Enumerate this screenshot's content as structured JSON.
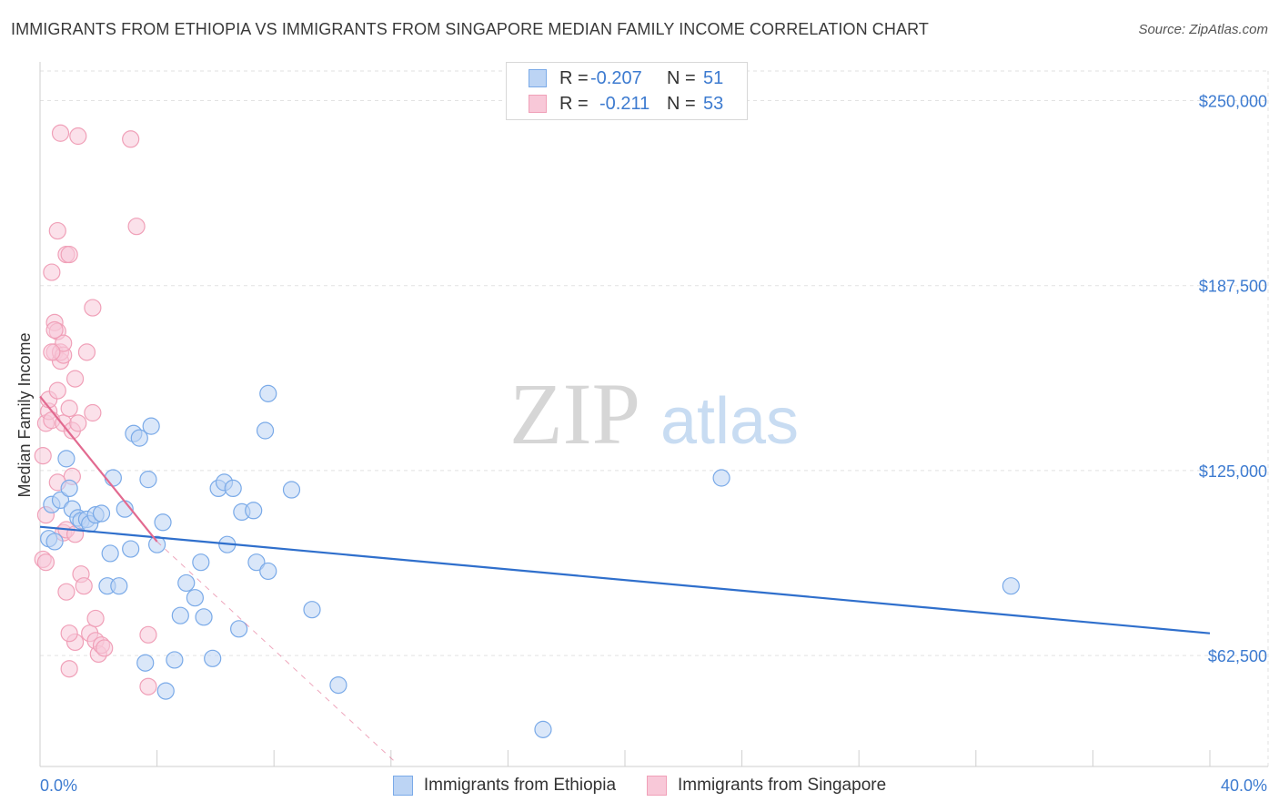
{
  "chart_data": {
    "type": "scatter",
    "title": "IMMIGRANTS FROM ETHIOPIA VS IMMIGRANTS FROM SINGAPORE MEDIAN FAMILY INCOME CORRELATION CHART",
    "source": "Source: ZipAtlas.com",
    "watermark": {
      "zip": "ZIP",
      "atlas": "atlas"
    },
    "ylabel": "Median Family Income",
    "xlim": [
      0,
      40
    ],
    "ylim": [
      25000,
      260000
    ],
    "y_ticks": [
      {
        "value": 62500,
        "label": "$62,500"
      },
      {
        "value": 125000,
        "label": "$125,000"
      },
      {
        "value": 187500,
        "label": "$187,500"
      },
      {
        "value": 250000,
        "label": "$250,000"
      }
    ],
    "x_tick_labels": {
      "left": "0.0%",
      "right": "40.0%"
    },
    "x_minor_ticks": [
      4,
      8,
      12,
      16,
      20,
      24,
      28,
      32,
      36,
      40
    ],
    "grid": true,
    "legend_stats": [
      {
        "r_label": "R =",
        "r": "-0.207",
        "n_label": "N =",
        "n": "51"
      },
      {
        "r_label": "R =",
        "r": "-0.211",
        "n_label": "N =",
        "n": "53"
      }
    ],
    "series": [
      {
        "name": "Immigrants from Ethiopia",
        "color": "#7aaae8",
        "fill": "#bcd4f4",
        "trend": {
          "x0": 0,
          "y0": 106000,
          "x1": 40,
          "y1": 70000,
          "color": "#2f6fcc"
        },
        "points": [
          [
            0.3,
            102000
          ],
          [
            0.4,
            113500
          ],
          [
            0.5,
            101000
          ],
          [
            0.7,
            115000
          ],
          [
            0.9,
            129000
          ],
          [
            1.0,
            119000
          ],
          [
            1.1,
            112000
          ],
          [
            1.3,
            109000
          ],
          [
            1.4,
            108000
          ],
          [
            1.6,
            108500
          ],
          [
            1.7,
            107000
          ],
          [
            1.9,
            110000
          ],
          [
            2.1,
            110500
          ],
          [
            2.3,
            86000
          ],
          [
            2.4,
            97000
          ],
          [
            2.5,
            122500
          ],
          [
            2.7,
            86000
          ],
          [
            2.9,
            112000
          ],
          [
            3.1,
            98500
          ],
          [
            3.2,
            137500
          ],
          [
            3.4,
            136000
          ],
          [
            3.6,
            60000
          ],
          [
            3.7,
            122000
          ],
          [
            3.8,
            140000
          ],
          [
            4.0,
            100000
          ],
          [
            4.2,
            107500
          ],
          [
            4.3,
            50500
          ],
          [
            4.6,
            61000
          ],
          [
            4.8,
            76000
          ],
          [
            5.0,
            87000
          ],
          [
            5.3,
            82000
          ],
          [
            5.5,
            94000
          ],
          [
            5.6,
            75500
          ],
          [
            5.9,
            61500
          ],
          [
            6.1,
            119000
          ],
          [
            6.3,
            121000
          ],
          [
            6.4,
            100000
          ],
          [
            6.6,
            119000
          ],
          [
            6.8,
            71500
          ],
          [
            6.9,
            111000
          ],
          [
            7.3,
            111500
          ],
          [
            7.4,
            94000
          ],
          [
            7.7,
            138500
          ],
          [
            7.8,
            91000
          ],
          [
            7.8,
            151000
          ],
          [
            8.6,
            118500
          ],
          [
            9.3,
            78000
          ],
          [
            10.2,
            52500
          ],
          [
            17.2,
            37500
          ],
          [
            23.3,
            122500
          ],
          [
            33.2,
            86000
          ]
        ]
      },
      {
        "name": "Immigrants from Singapore",
        "color": "#f0a0b8",
        "fill": "#f8c8d8",
        "trend": {
          "x0": 0,
          "y0": 150000,
          "x1": 4.0,
          "y1": 101000,
          "color": "#e26a90"
        },
        "trend_ext": {
          "x0": 4.0,
          "y0": 101000,
          "x1": 12.2,
          "y1": 26000
        },
        "points": [
          [
            0.1,
            95000
          ],
          [
            0.1,
            130000
          ],
          [
            0.2,
            141000
          ],
          [
            0.2,
            110000
          ],
          [
            0.3,
            145000
          ],
          [
            0.3,
            149000
          ],
          [
            0.4,
            142000
          ],
          [
            0.4,
            192000
          ],
          [
            0.5,
            165000
          ],
          [
            0.5,
            175000
          ],
          [
            0.6,
            206000
          ],
          [
            0.6,
            172000
          ],
          [
            0.6,
            152000
          ],
          [
            0.7,
            162000
          ],
          [
            0.7,
            239000
          ],
          [
            0.7,
            165000
          ],
          [
            0.8,
            164000
          ],
          [
            0.8,
            168000
          ],
          [
            0.8,
            141000
          ],
          [
            0.8,
            104000
          ],
          [
            0.9,
            198000
          ],
          [
            0.9,
            105000
          ],
          [
            0.9,
            84000
          ],
          [
            1.0,
            198000
          ],
          [
            1.0,
            146000
          ],
          [
            1.0,
            58000
          ],
          [
            1.1,
            138500
          ],
          [
            1.1,
            123000
          ],
          [
            1.2,
            156000
          ],
          [
            1.2,
            103500
          ],
          [
            1.2,
            67000
          ],
          [
            1.3,
            141000
          ],
          [
            1.3,
            238000
          ],
          [
            1.4,
            90000
          ],
          [
            1.5,
            86000
          ],
          [
            1.6,
            165000
          ],
          [
            1.7,
            70000
          ],
          [
            1.8,
            144500
          ],
          [
            1.8,
            180000
          ],
          [
            1.9,
            75000
          ],
          [
            1.9,
            67500
          ],
          [
            2.0,
            63000
          ],
          [
            2.1,
            66000
          ],
          [
            3.1,
            237000
          ],
          [
            3.3,
            207500
          ],
          [
            3.7,
            69500
          ],
          [
            3.7,
            52000
          ],
          [
            0.2,
            94000
          ],
          [
            0.4,
            165000
          ],
          [
            0.5,
            172500
          ],
          [
            0.6,
            121000
          ],
          [
            1.0,
            70000
          ],
          [
            2.2,
            65000
          ]
        ]
      }
    ]
  }
}
